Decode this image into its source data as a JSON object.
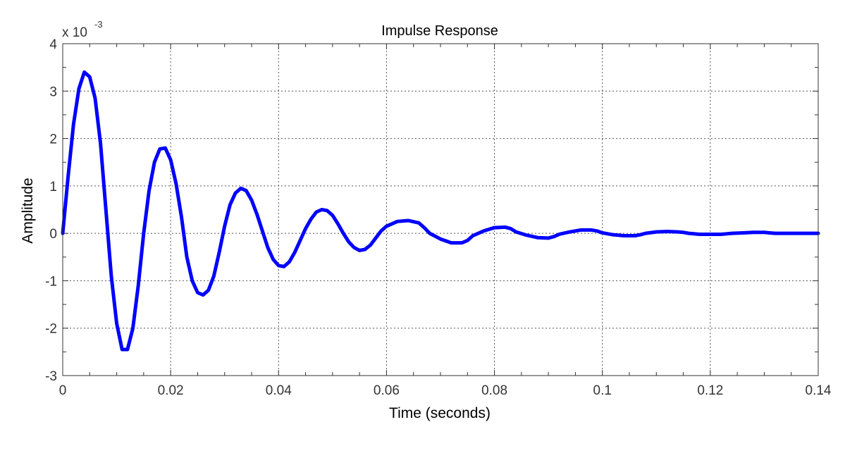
{
  "chart_data": {
    "type": "line",
    "title": "Impulse Response",
    "xlabel": "Time (seconds)",
    "ylabel": "Amplitude",
    "y_multiplier": {
      "base": "x 10",
      "exponent": "-3"
    },
    "xlim": [
      0,
      0.14
    ],
    "ylim": [
      -3,
      4
    ],
    "grid": true,
    "line_color": "#0000ff",
    "x_ticks": [
      0,
      0.02,
      0.04,
      0.06,
      0.08,
      0.1,
      0.12,
      0.14
    ],
    "x_tick_labels": [
      "0",
      "0.02",
      "0.04",
      "0.06",
      "0.08",
      "0.1",
      "0.12",
      "0.14"
    ],
    "y_ticks": [
      -3,
      -2,
      -1,
      0,
      1,
      2,
      3,
      4
    ],
    "y_tick_labels": [
      "-3",
      "-2",
      "-1",
      "0",
      "1",
      "2",
      "3",
      "4"
    ],
    "series": [
      {
        "x": [
          0,
          0.001,
          0.002,
          0.003,
          0.004,
          0.005,
          0.006,
          0.007,
          0.008,
          0.009,
          0.01,
          0.011,
          0.012,
          0.013,
          0.014,
          0.015,
          0.016,
          0.017,
          0.018,
          0.019,
          0.02,
          0.021,
          0.022,
          0.023,
          0.024,
          0.025,
          0.026,
          0.027,
          0.028,
          0.029,
          0.03,
          0.031,
          0.032,
          0.033,
          0.034,
          0.035,
          0.036,
          0.037,
          0.038,
          0.039,
          0.04,
          0.041,
          0.042,
          0.043,
          0.044,
          0.045,
          0.046,
          0.047,
          0.048,
          0.049,
          0.05,
          0.051,
          0.052,
          0.053,
          0.054,
          0.055,
          0.056,
          0.057,
          0.058,
          0.059,
          0.06,
          0.062,
          0.064,
          0.066,
          0.067,
          0.068,
          0.07,
          0.072,
          0.074,
          0.075,
          0.076,
          0.078,
          0.08,
          0.082,
          0.083,
          0.084,
          0.086,
          0.088,
          0.09,
          0.091,
          0.092,
          0.094,
          0.096,
          0.098,
          0.099,
          0.1,
          0.102,
          0.104,
          0.106,
          0.107,
          0.108,
          0.11,
          0.112,
          0.114,
          0.115,
          0.116,
          0.118,
          0.12,
          0.122,
          0.123,
          0.124,
          0.126,
          0.128,
          0.13,
          0.131,
          0.132,
          0.134,
          0.136,
          0.138,
          0.14
        ],
        "y": [
          0,
          1.2,
          2.3,
          3.05,
          3.4,
          3.3,
          2.85,
          1.9,
          0.5,
          -0.9,
          -1.9,
          -2.45,
          -2.45,
          -2.0,
          -1.1,
          0.0,
          0.9,
          1.5,
          1.78,
          1.8,
          1.55,
          1.05,
          0.35,
          -0.5,
          -1.0,
          -1.25,
          -1.3,
          -1.2,
          -0.9,
          -0.4,
          0.15,
          0.6,
          0.85,
          0.95,
          0.9,
          0.7,
          0.4,
          0.05,
          -0.3,
          -0.55,
          -0.68,
          -0.7,
          -0.6,
          -0.4,
          -0.15,
          0.1,
          0.3,
          0.45,
          0.5,
          0.48,
          0.38,
          0.2,
          0.0,
          -0.18,
          -0.3,
          -0.36,
          -0.34,
          -0.25,
          -0.1,
          0.05,
          0.15,
          0.25,
          0.27,
          0.22,
          0.12,
          0.0,
          -0.12,
          -0.2,
          -0.2,
          -0.15,
          -0.05,
          0.05,
          0.12,
          0.13,
          0.1,
          0.03,
          -0.04,
          -0.09,
          -0.1,
          -0.07,
          -0.02,
          0.03,
          0.07,
          0.07,
          0.05,
          0.01,
          -0.03,
          -0.05,
          -0.05,
          -0.03,
          0.0,
          0.03,
          0.04,
          0.03,
          0.02,
          0.0,
          -0.02,
          -0.02,
          -0.02,
          -0.01,
          0.0,
          0.01,
          0.02,
          0.02,
          0.01,
          0.0,
          0.0,
          0.0,
          0.0,
          0.0
        ]
      }
    ]
  }
}
